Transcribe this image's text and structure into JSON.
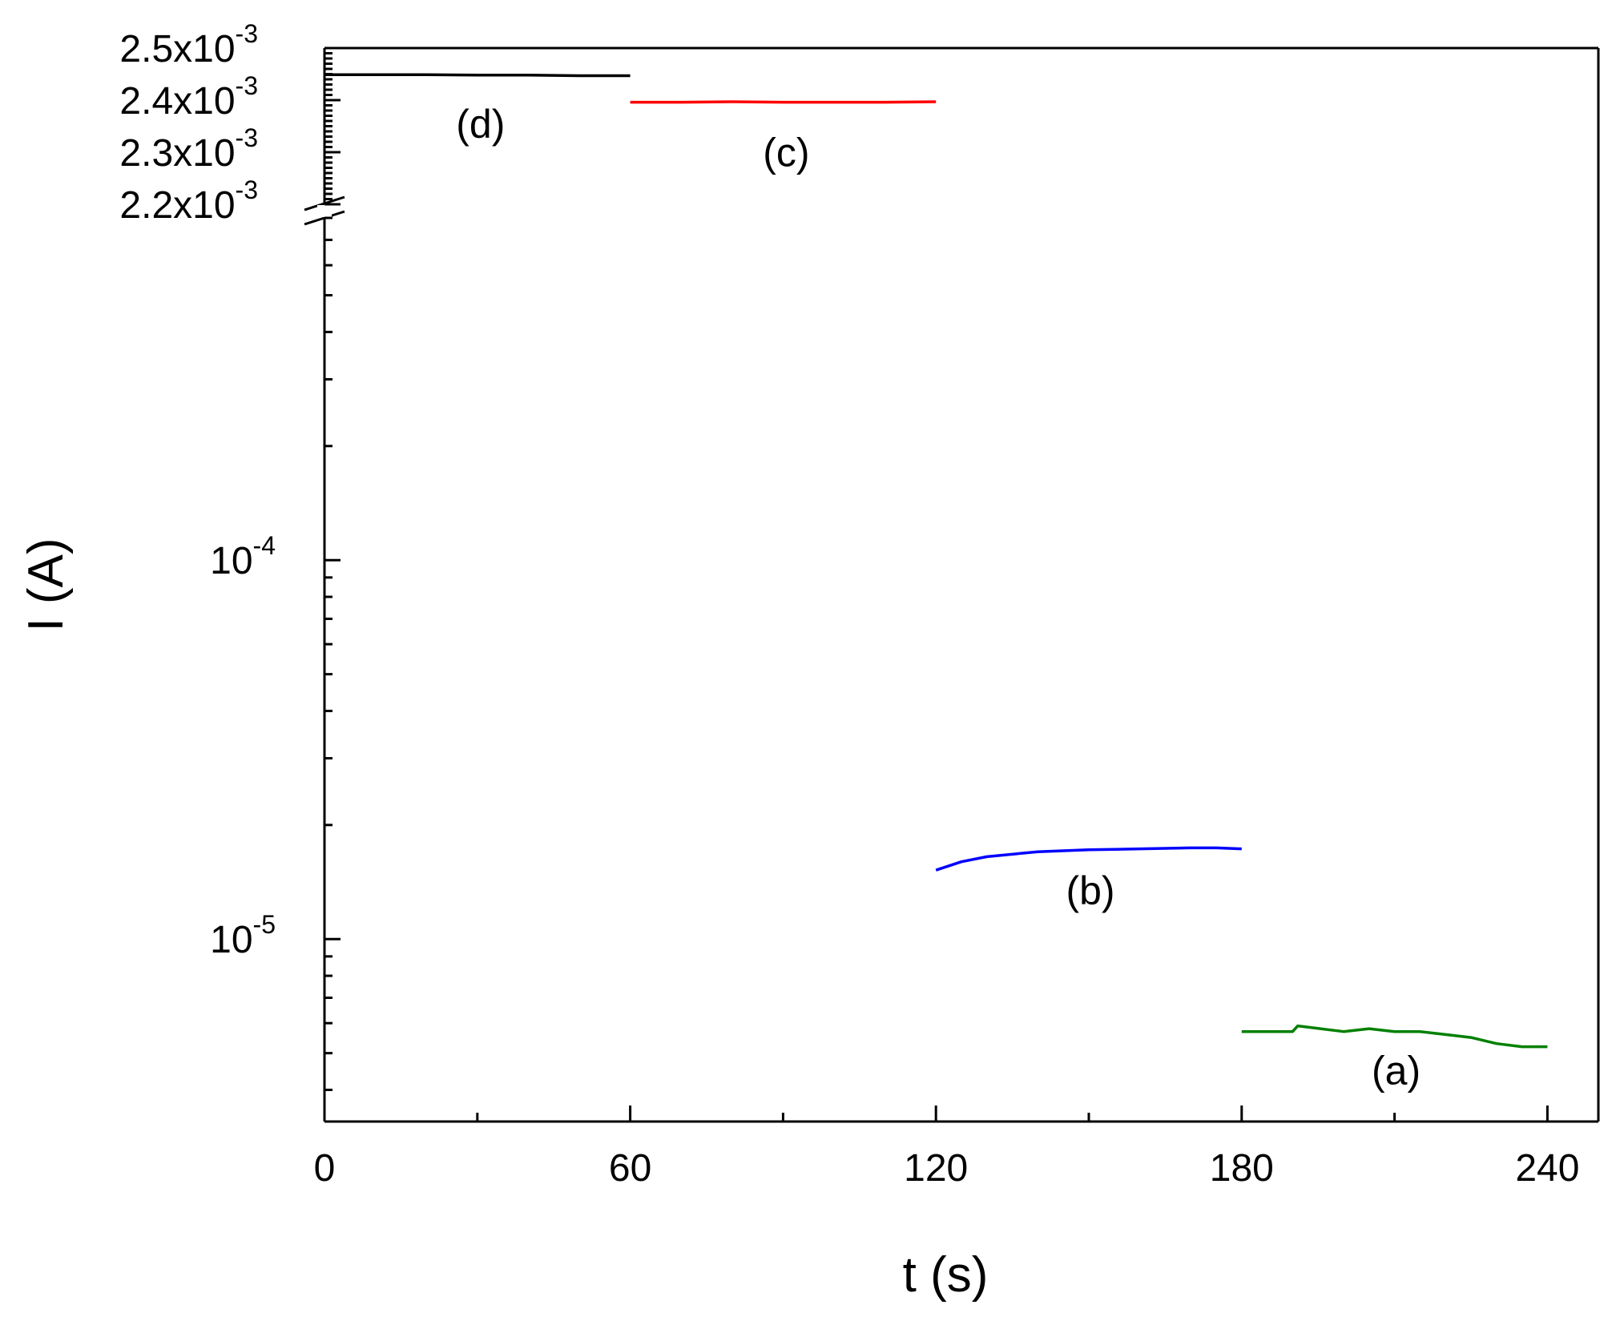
{
  "chart_data": {
    "type": "line",
    "xlabel": "t (s)",
    "ylabel": "I (A)",
    "xlim": [
      0,
      250
    ],
    "x_ticks": [
      0,
      60,
      120,
      180,
      240
    ],
    "y_axis": {
      "broken": true,
      "upper_segment": {
        "scale": "linear",
        "range": [
          0.0022,
          0.0025
        ],
        "ticks": [
          {
            "value": 0.0025,
            "mantissa": "2.5x10",
            "exponent": "-3"
          },
          {
            "value": 0.0024,
            "mantissa": "2.4x10",
            "exponent": "-3"
          },
          {
            "value": 0.0023,
            "mantissa": "2.3x10",
            "exponent": "-3"
          },
          {
            "value": 0.0022,
            "mantissa": "2.2x10",
            "exponent": "-3"
          }
        ]
      },
      "lower_segment": {
        "scale": "log",
        "range": [
          3.3e-06,
          0.0008
        ],
        "ticks": [
          {
            "value": 0.0001,
            "base": "10",
            "exponent": "-4"
          },
          {
            "value": 1e-05,
            "base": "10",
            "exponent": "-5"
          }
        ]
      }
    },
    "series": [
      {
        "label": "(d)",
        "color": "#000000",
        "segment": "upper",
        "x": [
          0,
          10,
          20,
          30,
          40,
          50,
          60
        ],
        "y": [
          0.002449,
          0.002449,
          0.002449,
          0.002448,
          0.002448,
          0.002447,
          0.002447
        ]
      },
      {
        "label": "(c)",
        "color": "#ff0000",
        "segment": "upper",
        "x": [
          60,
          70,
          80,
          90,
          100,
          110,
          120
        ],
        "y": [
          0.002396,
          0.002396,
          0.002397,
          0.002396,
          0.002396,
          0.002396,
          0.002397
        ]
      },
      {
        "label": "(b)",
        "color": "#0000ff",
        "segment": "lower",
        "x": [
          120,
          125,
          130,
          140,
          150,
          160,
          170,
          175,
          180
        ],
        "y": [
          1.52e-05,
          1.6e-05,
          1.65e-05,
          1.7e-05,
          1.72e-05,
          1.73e-05,
          1.74e-05,
          1.74e-05,
          1.73e-05
        ]
      },
      {
        "label": "(a)",
        "color": "#008000",
        "segment": "lower",
        "x": [
          180,
          190,
          191,
          200,
          205,
          210,
          215,
          220,
          225,
          230,
          235,
          240
        ],
        "y": [
          5.7e-06,
          5.7e-06,
          5.9e-06,
          5.7e-06,
          5.8e-06,
          5.7e-06,
          5.7e-06,
          5.6e-06,
          5.5e-06,
          5.3e-06,
          5.2e-06,
          5.2e-06
        ]
      }
    ]
  }
}
